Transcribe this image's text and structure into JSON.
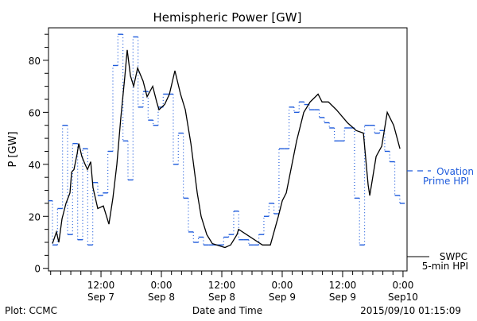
{
  "chart_data": {
    "type": "line",
    "title": "Hemispheric Power [GW]",
    "xlabel": "Date and Time",
    "ylabel": "P [GW]",
    "x_units": "hours since 2015-09-07 00:00",
    "xlim": [
      1.57,
      72.8
    ],
    "ylim": [
      -1,
      92.5
    ],
    "yticks": [
      0,
      20,
      40,
      60,
      80
    ],
    "ytick_labels": [
      "0",
      "20",
      "40",
      "60",
      "80"
    ],
    "xticks": [
      12,
      24,
      36,
      48,
      60,
      72
    ],
    "xtick_labels": [
      [
        "12:00",
        "Sep 7"
      ],
      [
        "0:00",
        "Sep 8"
      ],
      [
        "12:00",
        "Sep 8"
      ],
      [
        "0:00",
        "Sep 9"
      ],
      [
        "12:00",
        "Sep 9"
      ],
      [
        "0:00",
        "Sep10"
      ]
    ],
    "grid": false,
    "legend_placement": "right-outside",
    "series": [
      {
        "name": "Ovation Prime HPI",
        "legend_lines": [
          "Ovation",
          "Prime HPI"
        ],
        "style": "step-dotted",
        "color": "#1e5bdc",
        "first_value": 26,
        "step_start": 2.36,
        "step_hours": 1,
        "values": [
          9,
          23,
          55,
          13,
          48,
          11,
          46,
          9,
          33,
          28,
          29,
          45,
          78,
          90,
          49,
          34,
          89,
          62,
          68,
          57,
          55,
          62,
          67,
          67,
          40,
          52,
          27,
          14,
          10,
          12,
          9,
          9,
          9,
          9,
          12,
          13,
          22,
          11,
          11,
          9,
          9,
          13,
          20,
          25,
          21,
          46,
          46,
          62,
          60,
          64,
          63,
          61,
          61,
          58,
          56,
          54,
          49,
          49,
          54,
          54,
          27,
          9,
          55,
          55,
          52,
          53,
          45,
          41,
          28,
          25
        ]
      },
      {
        "name": "SWPC 5-min HPI",
        "legend_lines": [
          "SWPC",
          "5-min HPI"
        ],
        "style": "solid",
        "color": "#000000",
        "x": [
          2.36,
          3.15,
          3.63,
          4.26,
          5.05,
          5.84,
          6.16,
          6.63,
          7.26,
          7.58,
          8.21,
          8.84,
          9.31,
          9.95,
          10.42,
          11.37,
          12.47,
          13.58,
          14.37,
          15.16,
          15.95,
          16.74,
          17.21,
          17.85,
          18.48,
          19.27,
          20.37,
          21.16,
          22.27,
          23.06,
          23.53,
          24.64,
          25.59,
          26.69,
          27.8,
          28.75,
          29.85,
          31.12,
          31.9,
          33.01,
          34.12,
          36.64,
          37.75,
          39.01,
          39.33,
          44.07,
          45.65,
          47.23,
          48.02,
          48.81,
          50.86,
          52.28,
          53.55,
          55.13,
          55.92,
          57.18,
          58.76,
          60.97,
          62.71,
          64.13,
          65.08,
          65.4,
          66.66,
          67.77,
          68.87,
          70.14,
          71.4
        ],
        "y": [
          9.5,
          14,
          10,
          19,
          25,
          29,
          37,
          38,
          44,
          48,
          43,
          40,
          38,
          41,
          31,
          23,
          24,
          17,
          27,
          40,
          58,
          74,
          84,
          74,
          70,
          77,
          72,
          66,
          70,
          64,
          61,
          63,
          67,
          76,
          67,
          61,
          48,
          29,
          20,
          13,
          9.5,
          8,
          9,
          13,
          15,
          9,
          9,
          20,
          26,
          29,
          49,
          60,
          64,
          67,
          64,
          64,
          61,
          56,
          53,
          52,
          32,
          28,
          43,
          47,
          60,
          55,
          46
        ]
      }
    ]
  },
  "footer": {
    "left": "Plot: CCMC",
    "right": "2015/09/10 01:15:09"
  }
}
